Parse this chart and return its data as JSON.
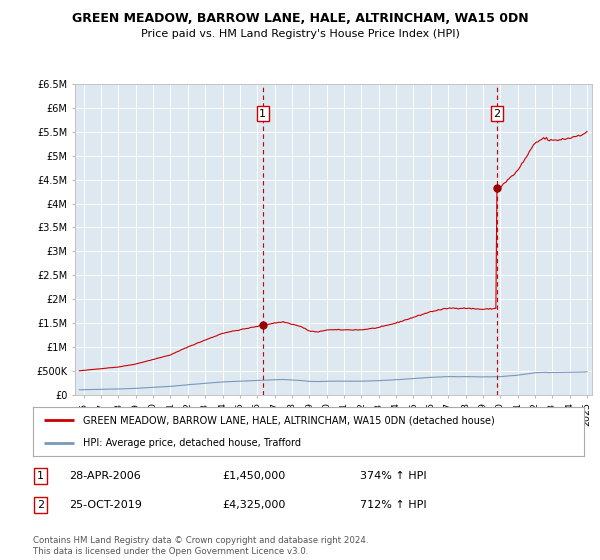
{
  "title": "GREEN MEADOW, BARROW LANE, HALE, ALTRINCHAM, WA15 0DN",
  "subtitle": "Price paid vs. HM Land Registry's House Price Index (HPI)",
  "background_color": "#dde8f0",
  "plot_bg_color": "#dde8f0",
  "ylim": [
    0,
    6500000
  ],
  "yticks": [
    0,
    500000,
    1000000,
    1500000,
    2000000,
    2500000,
    3000000,
    3500000,
    4000000,
    4500000,
    5000000,
    5500000,
    6000000,
    6500000
  ],
  "ytick_labels": [
    "£0",
    "£500K",
    "£1M",
    "£1.5M",
    "£2M",
    "£2.5M",
    "£3M",
    "£3.5M",
    "£4M",
    "£4.5M",
    "£5M",
    "£5.5M",
    "£6M",
    "£6.5M"
  ],
  "xlim_start": 1995.5,
  "xlim_end": 2025.3,
  "sale1_x": 2006.32,
  "sale1_y": 1450000,
  "sale1_label": "1",
  "sale1_date": "28-APR-2006",
  "sale1_price": "£1,450,000",
  "sale1_hpi": "374% ↑ HPI",
  "sale2_x": 2019.81,
  "sale2_y": 4325000,
  "sale2_label": "2",
  "sale2_date": "25-OCT-2019",
  "sale2_price": "£4,325,000",
  "sale2_hpi": "712% ↑ HPI",
  "red_line_color": "#cc0000",
  "blue_line_color": "#7799bb",
  "marker_color": "#990000",
  "dashed_line_color": "#cc0000",
  "legend_label_red": "GREEN MEADOW, BARROW LANE, HALE, ALTRINCHAM, WA15 0DN (detached house)",
  "legend_label_blue": "HPI: Average price, detached house, Trafford",
  "footer": "Contains HM Land Registry data © Crown copyright and database right 2024.\nThis data is licensed under the Open Government Licence v3.0."
}
